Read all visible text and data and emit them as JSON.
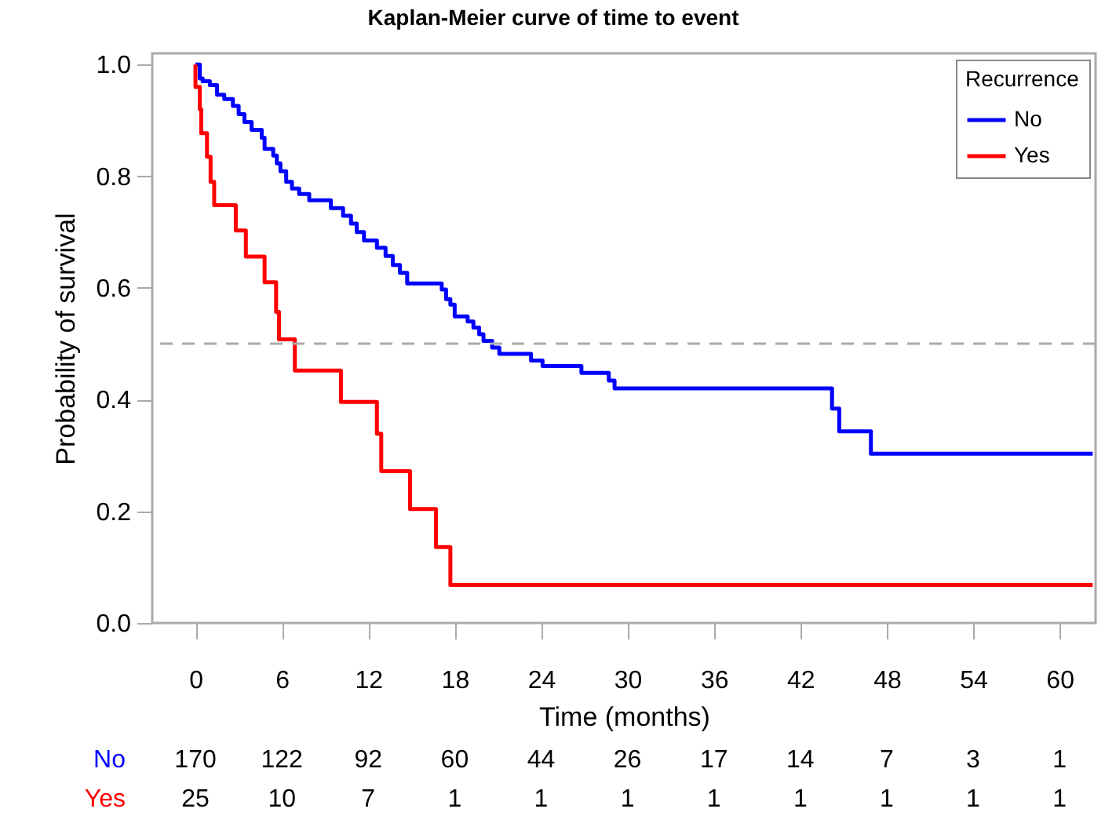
{
  "chart_data": {
    "type": "step",
    "title": "Kaplan-Meier curve of time to event",
    "xlabel": "Time (months)",
    "ylabel": "Probability of survival",
    "legend_title": "Recurrence",
    "legend": "top right",
    "grid": false,
    "marker": "none",
    "line_style": "solid",
    "xlim": [
      -3,
      62.5
    ],
    "xticks": [
      0,
      6,
      12,
      18,
      24,
      30,
      36,
      42,
      48,
      54,
      60
    ],
    "ylim": [
      0,
      1.02
    ],
    "yticks": [
      {
        "value": 0,
        "label": "0.0"
      },
      {
        "value": 0.2,
        "label": "0.2"
      },
      {
        "value": 0.4,
        "label": "0.4"
      },
      {
        "value": 0.6,
        "label": "0.6"
      },
      {
        "value": 0.8,
        "label": "0.8"
      },
      {
        "value": 1,
        "label": "1.0"
      }
    ],
    "series": [
      {
        "name": "No",
        "color": "#0000ff",
        "x": [
          0,
          0.3,
          0.5,
          1.0,
          1.5,
          2.0,
          2.6,
          3.0,
          3.4,
          3.9,
          4.6,
          4.8,
          5.4,
          5.65,
          5.9,
          6.3,
          6.7,
          7.2,
          7.9,
          9.4,
          10.25,
          10.8,
          11.2,
          11.7,
          12.6,
          13.2,
          13.7,
          14.2,
          14.7,
          17.1,
          17.4,
          17.7,
          18.0,
          18.9,
          19.3,
          19.7,
          20.0,
          20.6,
          21.1,
          23.3,
          24.1,
          26.8,
          28.7,
          29.1,
          44.2,
          44.7,
          46.9,
          62.3
        ],
        "values": [
          1.0,
          0.975,
          0.97,
          0.963,
          0.946,
          0.938,
          0.926,
          0.911,
          0.897,
          0.883,
          0.869,
          0.849,
          0.837,
          0.823,
          0.809,
          0.79,
          0.778,
          0.768,
          0.757,
          0.743,
          0.729,
          0.715,
          0.7,
          0.685,
          0.672,
          0.657,
          0.641,
          0.627,
          0.608,
          0.597,
          0.58,
          0.57,
          0.549,
          0.54,
          0.529,
          0.517,
          0.505,
          0.493,
          0.482,
          0.47,
          0.46,
          0.448,
          0.434,
          0.42,
          0.384,
          0.343,
          0.303,
          0.303
        ]
      },
      {
        "name": "Yes",
        "color": "#ff0000",
        "x": [
          0,
          0,
          0.3,
          0.4,
          0.8,
          1.05,
          1.3,
          2.8,
          3.5,
          4.8,
          5.6,
          5.8,
          6.9,
          10.1,
          12.6,
          12.9,
          14.9,
          16.7,
          17.7,
          62.3
        ],
        "values": [
          1.0,
          0.96,
          0.92,
          0.877,
          0.835,
          0.79,
          0.748,
          0.703,
          0.656,
          0.61,
          0.557,
          0.508,
          0.452,
          0.396,
          0.339,
          0.272,
          0.204,
          0.136,
          0.068,
          0.068
        ]
      }
    ],
    "ref_lines": [
      {
        "axis": "y",
        "value": 0.5,
        "color": "#aaaaaa",
        "line_style": "dashed"
      }
    ],
    "annotations": [
      "170",
      "122",
      "92",
      "60",
      "44",
      "26",
      "17",
      "14",
      "7",
      "3",
      "1",
      "25",
      "10",
      "7",
      "1",
      "1",
      "1",
      "1",
      "1",
      "1",
      "1",
      "1"
    ]
  }
}
